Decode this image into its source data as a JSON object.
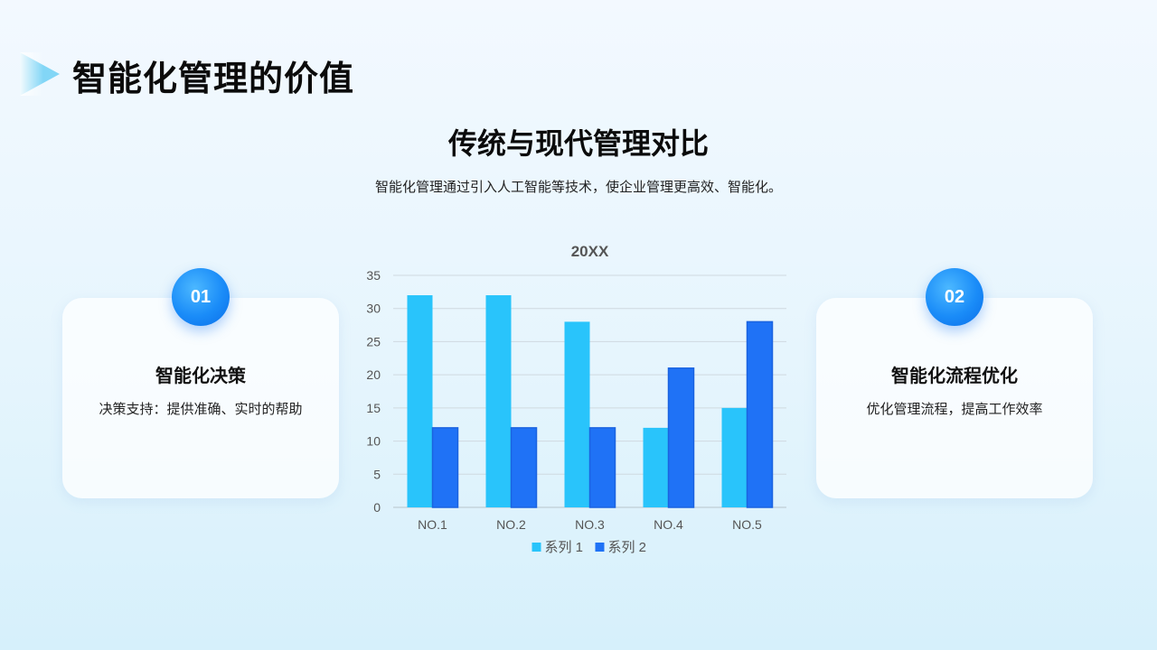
{
  "header": {
    "title": "智能化管理的价值"
  },
  "section": {
    "title": "传统与现代管理对比",
    "subtitle": "智能化管理通过引入人工智能等技术，使企业管理更高效、智能化。"
  },
  "cards": [
    {
      "badge": "01",
      "heading": "智能化决策",
      "text": "决策支持：提供准确、实时的帮助"
    },
    {
      "badge": "02",
      "heading": "智能化流程优化",
      "text": "优化管理流程，提高工作效率"
    }
  ],
  "colors": {
    "series1": "#29c4fb",
    "series2": "#1f72f6",
    "badge": "#1a8cf8"
  },
  "chart_data": {
    "type": "bar",
    "title": "20XX",
    "categories": [
      "NO.1",
      "NO.2",
      "NO.3",
      "NO.4",
      "NO.5"
    ],
    "series": [
      {
        "name": "系列 1",
        "values": [
          32,
          32,
          28,
          12,
          15
        ]
      },
      {
        "name": "系列 2",
        "values": [
          12,
          12,
          12,
          21,
          28
        ]
      }
    ],
    "ylim": [
      0,
      35
    ],
    "yticks": [
      0,
      5,
      10,
      15,
      20,
      25,
      30,
      35
    ],
    "grid": true,
    "legend": "bottom"
  }
}
